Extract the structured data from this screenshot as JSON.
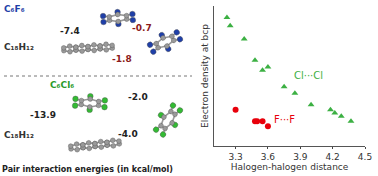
{
  "chart_data": {
    "type": "scatter",
    "xlabel": "Halogen-halogen distance",
    "ylabel": "Electron density at bcp",
    "xlim": [
      3.1,
      4.5
    ],
    "xticks": [
      3.3,
      3.6,
      3.9,
      4.2,
      4.5
    ],
    "ylim": [
      0,
      0.0085
    ],
    "tick_labels": "x",
    "grid": false,
    "series": [
      {
        "name": "Cl···Cl",
        "color": "#3cb043",
        "marker": "triangle-up",
        "x": [
          3.22,
          3.25,
          3.38,
          3.48,
          3.55,
          3.6,
          3.75,
          3.85,
          4.0,
          4.18,
          4.22,
          4.28,
          4.37
        ],
        "values": [
          0.0078,
          0.0073,
          0.0065,
          0.0052,
          0.0046,
          0.0048,
          0.0036,
          0.0032,
          0.0025,
          0.0022,
          0.002,
          0.0018,
          0.0015
        ]
      },
      {
        "name": "F···F",
        "color": "#e8000b",
        "marker": "circle",
        "x": [
          3.3,
          3.48,
          3.5,
          3.55,
          3.6
        ],
        "values": [
          0.0022,
          0.0015,
          0.0015,
          0.0015,
          0.0012
        ]
      }
    ],
    "annotations": [
      {
        "text": "Cl···Cl",
        "x": 3.98,
        "y": 0.0043,
        "color": "#3cb043"
      },
      {
        "text": "F···F",
        "x": 3.75,
        "y": 0.0016,
        "color": "#e8000b"
      }
    ]
  },
  "diagram": {
    "top": {
      "guest": "C₆F₆",
      "host": "C₁₈H₁₂",
      "energies": [
        "-7.4",
        "-0.7",
        "-1.8"
      ]
    },
    "bottom": {
      "guest": "C₆Cl₆",
      "host": "C₁₈H₁₂",
      "energies": [
        "-2.0",
        "-13.9",
        "-4.0"
      ]
    },
    "caption": "Pair interaction energies (in kcal/mol)"
  }
}
